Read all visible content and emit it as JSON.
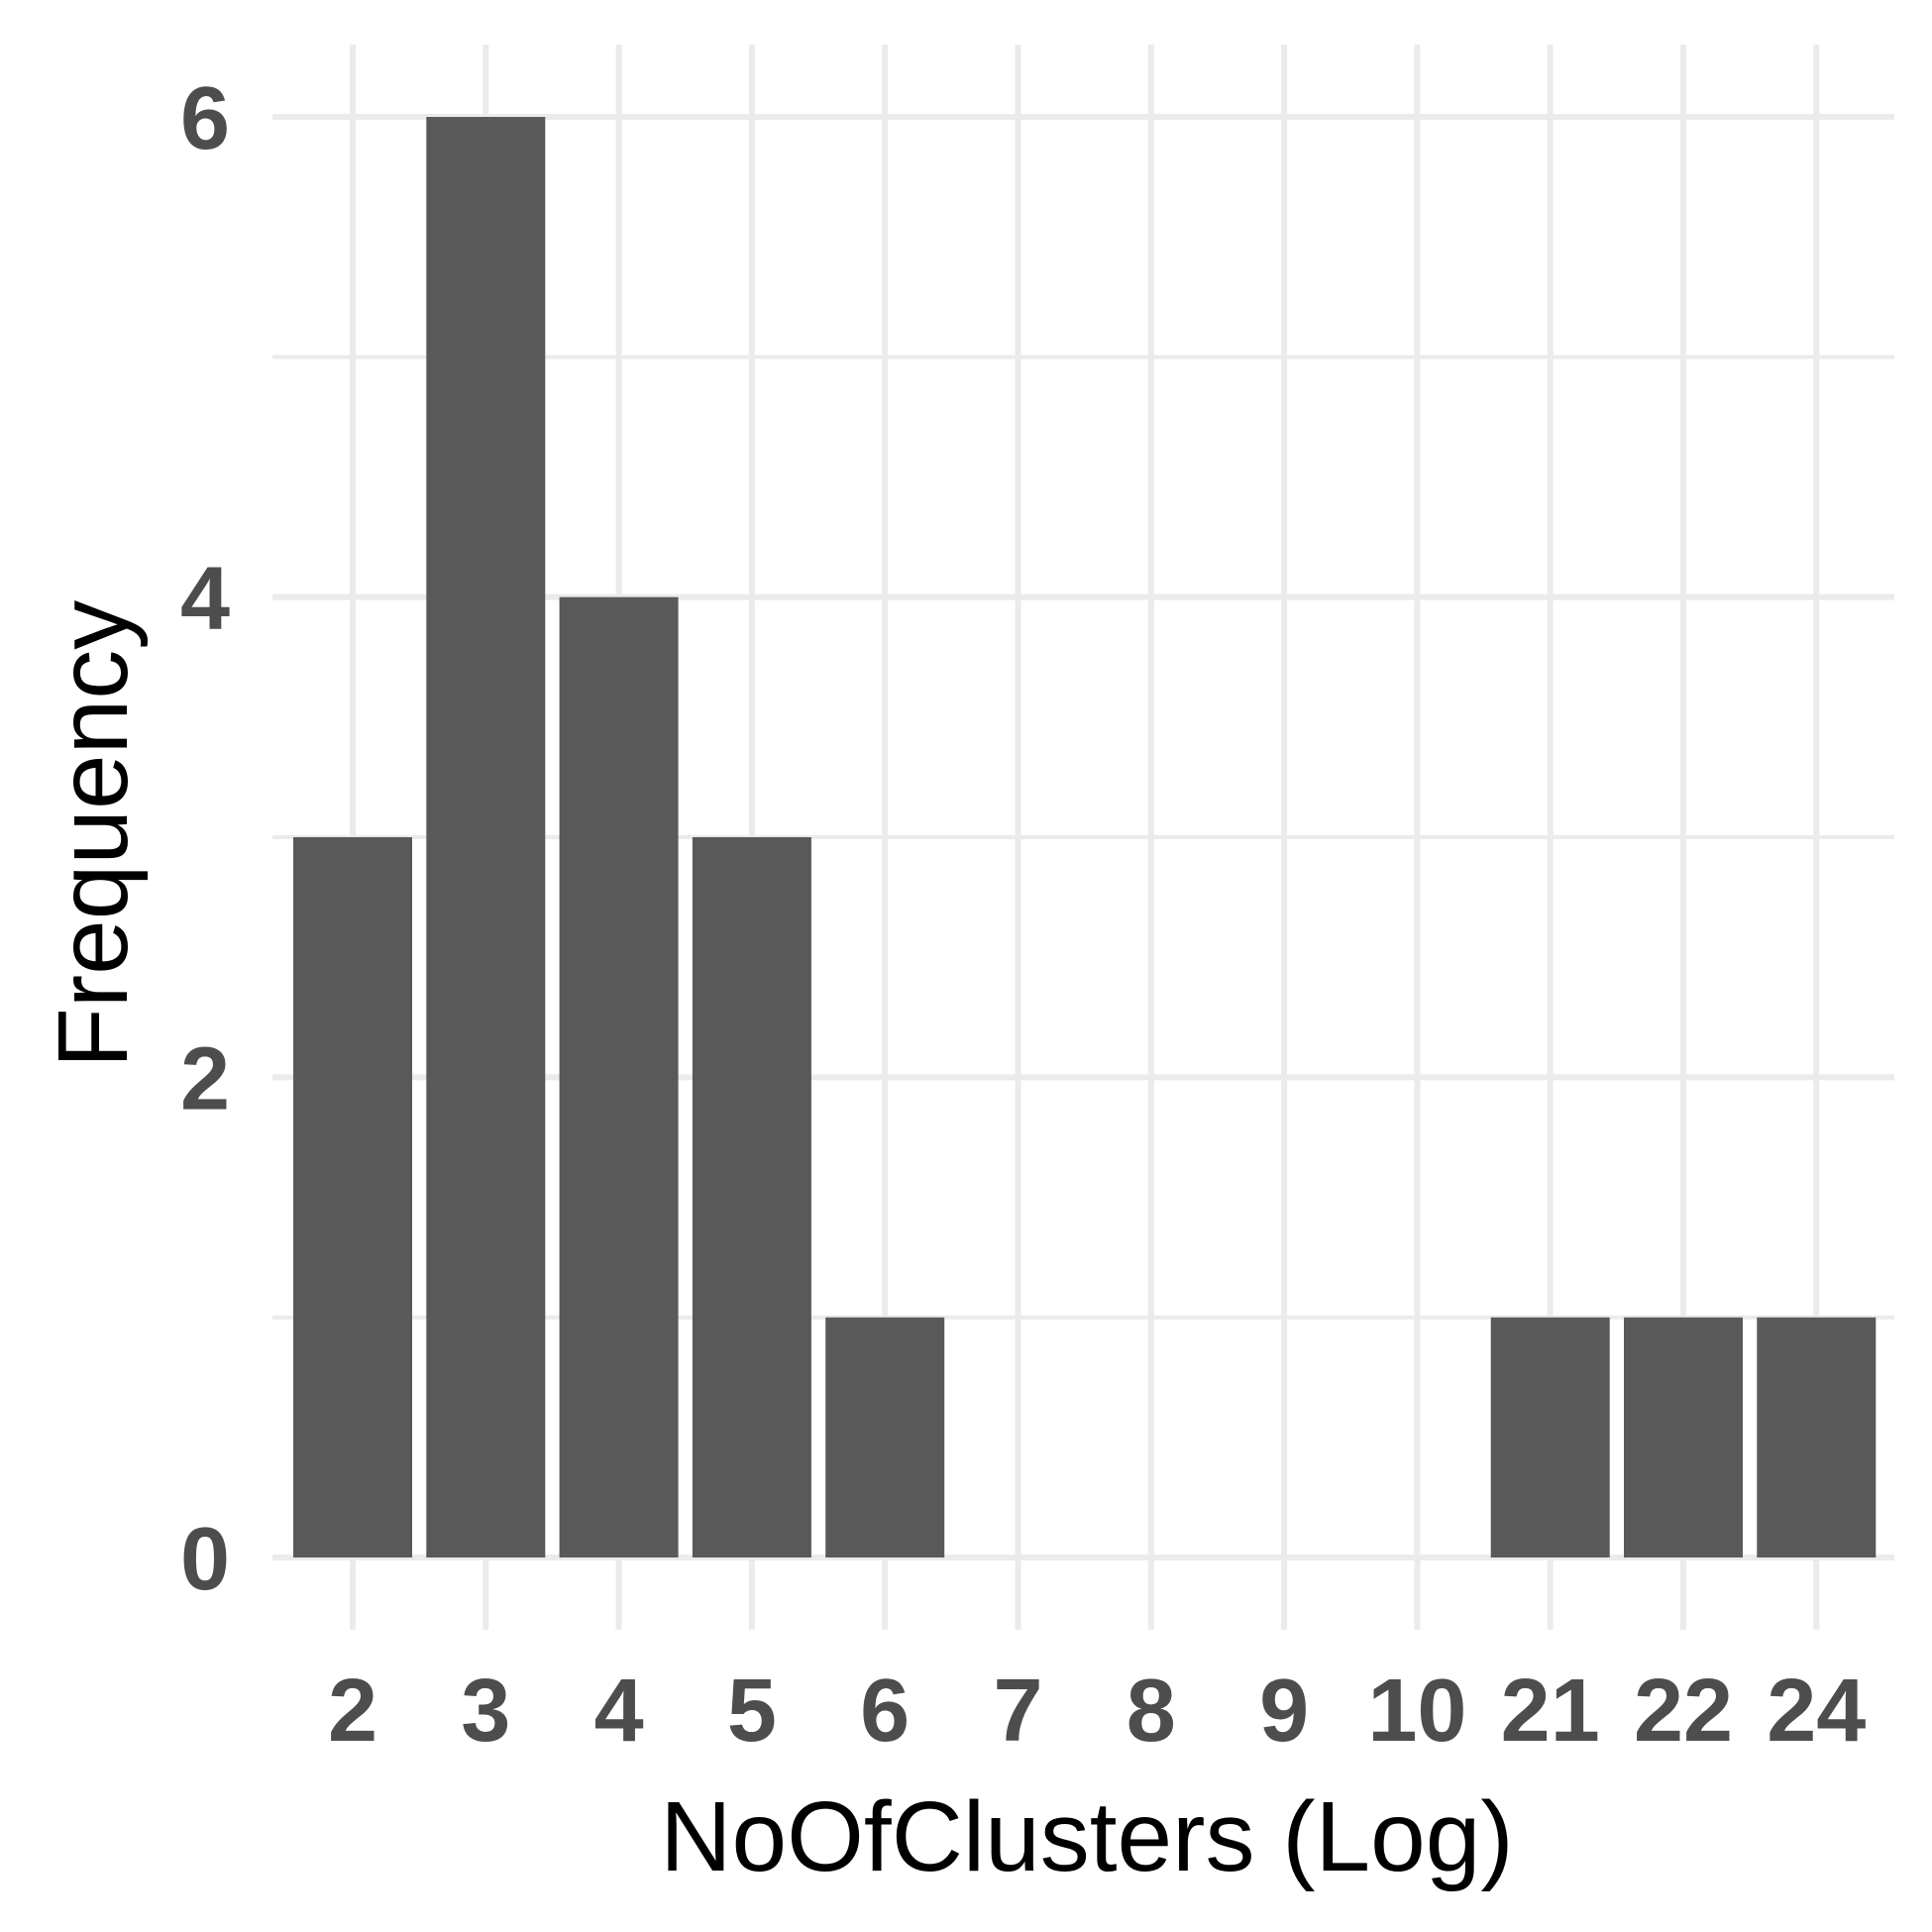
{
  "chart_data": {
    "type": "bar",
    "categories": [
      "2",
      "3",
      "4",
      "5",
      "6",
      "7",
      "8",
      "9",
      "10",
      "21",
      "22",
      "24"
    ],
    "values": [
      3,
      6,
      4,
      3,
      1,
      0,
      0,
      0,
      0,
      1,
      1,
      1
    ],
    "xlabel": "NoOfClusters (Log)",
    "ylabel": "Frequency",
    "ylim": [
      0,
      6
    ],
    "yticks": [
      0,
      2,
      4,
      6
    ],
    "grid": true,
    "legend": "none",
    "colors": {
      "bar": "#595959",
      "grid": "#ebebeb",
      "tick_text": "#4d4d4d",
      "axis_title": "#000000",
      "background": "#ffffff"
    }
  }
}
